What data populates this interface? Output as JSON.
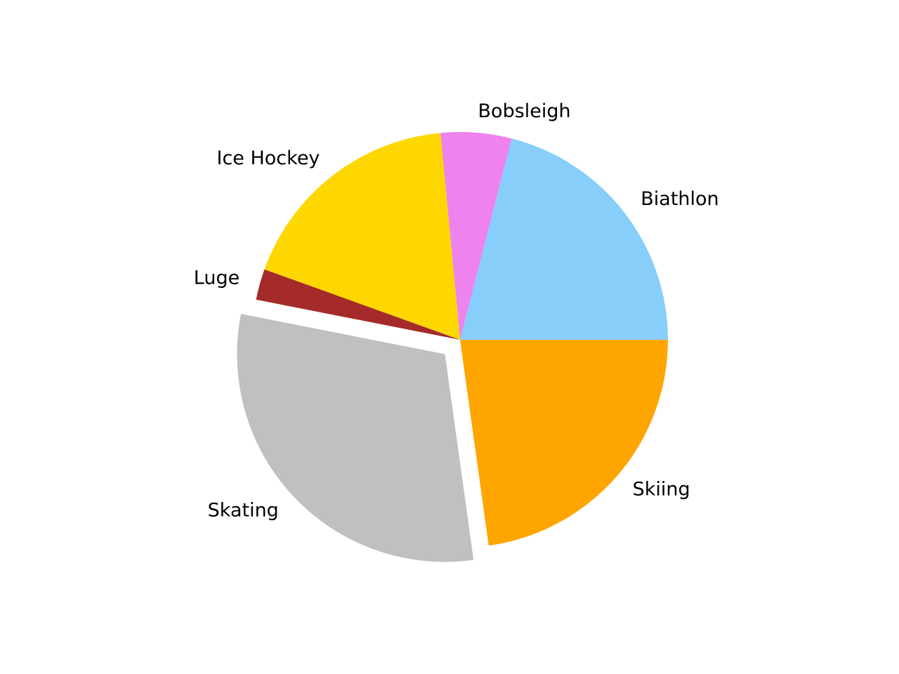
{
  "chart_data": {
    "type": "pie",
    "title": "",
    "start_angle_deg": 0,
    "direction": "counterclockwise",
    "slices": [
      {
        "label": "Biathlon",
        "value": 21.0,
        "color": "#87CEFA",
        "explode": false
      },
      {
        "label": "Bobsleigh",
        "value": 5.5,
        "color": "#EE82EE",
        "explode": false
      },
      {
        "label": "Ice Hockey",
        "value": 18.0,
        "color": "#FFD700",
        "explode": false
      },
      {
        "label": "Luge",
        "value": 2.4,
        "color": "#A52A2A",
        "explode": false
      },
      {
        "label": "Skating",
        "value": 30.3,
        "color": "#C0C0C0",
        "explode": true
      },
      {
        "label": "Skiing",
        "value": 22.8,
        "color": "#FFA500",
        "explode": false
      }
    ]
  }
}
